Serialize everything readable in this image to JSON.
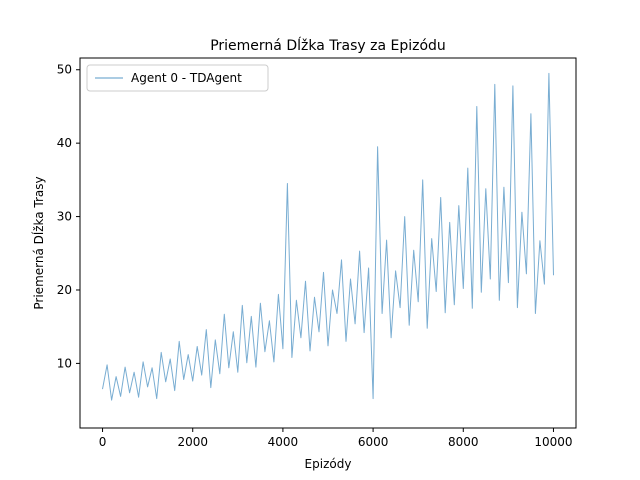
{
  "chart_data": {
    "type": "line",
    "title": "Priemerná Dĺžka Trasy za Epizódu",
    "xlabel": "Epizódy",
    "ylabel": "Priemerná Dĺžka Trasy",
    "xlim": [
      -500,
      10500
    ],
    "ylim": [
      1.2,
      51.6
    ],
    "xticks": [
      0,
      2000,
      4000,
      6000,
      8000,
      10000
    ],
    "yticks": [
      10,
      20,
      30,
      40,
      50
    ],
    "xtick_labels": [
      "0",
      "2000",
      "4000",
      "6000",
      "8000",
      "10000"
    ],
    "ytick_labels": [
      "10",
      "20",
      "30",
      "40",
      "50"
    ],
    "legend_position": "upper-left",
    "series": [
      {
        "name": "Agent 0 - TDAgent",
        "color": "#1f77b4",
        "opacity": 0.6,
        "x": [
          0,
          100,
          200,
          300,
          400,
          500,
          600,
          700,
          800,
          900,
          1000,
          1100,
          1200,
          1300,
          1400,
          1500,
          1600,
          1700,
          1800,
          1900,
          2000,
          2100,
          2200,
          2300,
          2400,
          2500,
          2600,
          2700,
          2800,
          2900,
          3000,
          3100,
          3200,
          3300,
          3400,
          3500,
          3600,
          3700,
          3800,
          3900,
          4000,
          4100,
          4200,
          4300,
          4400,
          4500,
          4600,
          4700,
          4800,
          4900,
          5000,
          5100,
          5200,
          5300,
          5400,
          5500,
          5600,
          5700,
          5800,
          5900,
          6000,
          6100,
          6200,
          6300,
          6400,
          6500,
          6600,
          6700,
          6800,
          6900,
          7000,
          7100,
          7200,
          7300,
          7400,
          7500,
          7600,
          7700,
          7800,
          7900,
          8000,
          8100,
          8200,
          8300,
          8400,
          8500,
          8600,
          8700,
          8800,
          8900,
          9000,
          9100,
          9200,
          9300,
          9400,
          9500,
          9600,
          9700,
          9800,
          9900,
          10000
        ],
        "values": [
          6.5,
          9.8,
          5.0,
          8.2,
          5.5,
          9.5,
          6.0,
          8.8,
          5.4,
          10.2,
          6.8,
          9.4,
          5.2,
          11.5,
          7.5,
          10.6,
          6.3,
          13.0,
          7.8,
          11.2,
          7.6,
          12.3,
          8.4,
          14.6,
          6.7,
          13.2,
          8.6,
          16.7,
          9.4,
          14.3,
          8.8,
          17.9,
          10.1,
          16.4,
          9.5,
          18.2,
          11.6,
          15.8,
          10.2,
          19.4,
          12.0,
          34.5,
          10.8,
          18.6,
          13.5,
          21.2,
          11.7,
          19.0,
          14.3,
          22.4,
          12.4,
          20.0,
          16.8,
          24.1,
          13.0,
          21.5,
          15.4,
          25.3,
          14.2,
          23.0,
          5.2,
          39.5,
          16.8,
          26.8,
          13.5,
          22.6,
          17.6,
          30.0,
          15.2,
          25.4,
          18.4,
          35.0,
          14.8,
          27.0,
          19.8,
          32.6,
          16.9,
          29.2,
          18.0,
          31.5,
          20.2,
          36.6,
          17.5,
          45.0,
          19.7,
          33.8,
          21.5,
          48.0,
          18.6,
          34.0,
          21.0,
          47.8,
          17.6,
          30.6,
          22.2,
          44.0,
          16.8,
          26.7,
          20.8,
          49.5,
          22.0
        ]
      }
    ]
  }
}
